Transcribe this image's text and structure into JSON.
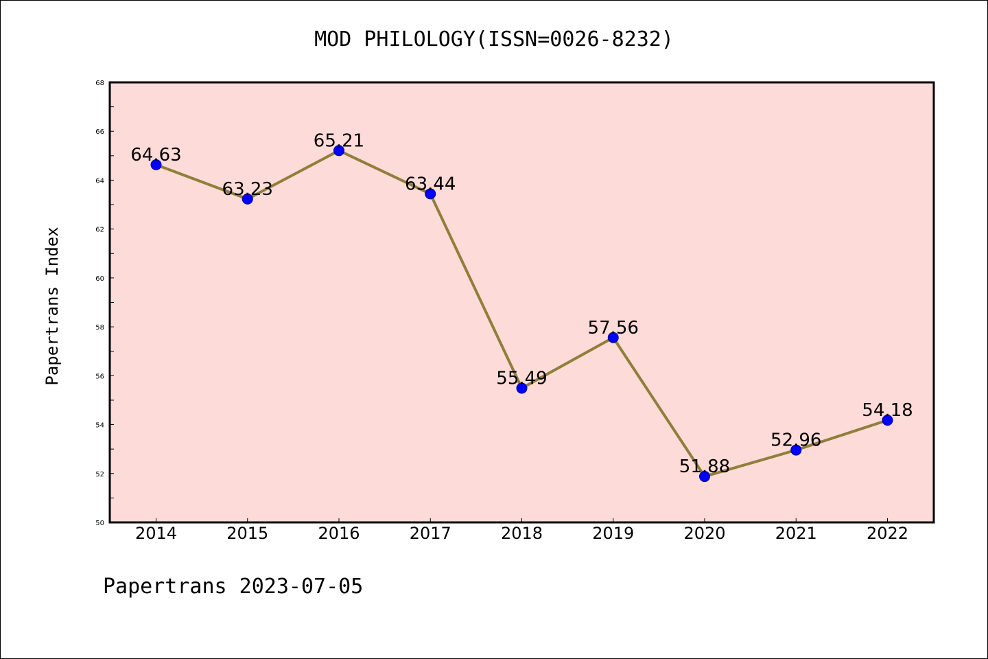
{
  "chart_data": {
    "type": "line",
    "title": "MOD PHILOLOGY(ISSN=0026-8232)",
    "ylabel": "Papertrans Index",
    "xlabel": "",
    "footer": "Papertrans 2023-07-05",
    "categories": [
      "2014",
      "2015",
      "2016",
      "2017",
      "2018",
      "2019",
      "2020",
      "2021",
      "2022"
    ],
    "series": [
      {
        "values": [
          64.63,
          63.23,
          65.21,
          63.44,
          55.49,
          57.56,
          51.88,
          52.96,
          54.18
        ],
        "labels": [
          "64.63",
          "63.23",
          "65.21",
          "63.44",
          "55.49",
          "57.56",
          "51.88",
          "52.96",
          "54.18"
        ]
      }
    ],
    "ylim": [
      50,
      68
    ],
    "yticks": [
      "50",
      "52",
      "54",
      "56",
      "58",
      "60",
      "62",
      "64",
      "66",
      "68"
    ],
    "grid": false,
    "legend": "none",
    "colors": {
      "plot_background": "#fddbd8",
      "line": "#8f7f3a",
      "marker": "#0000ff",
      "marker_edge": "#00008b"
    }
  }
}
